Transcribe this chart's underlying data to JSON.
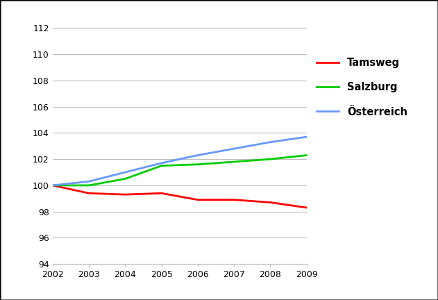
{
  "years": [
    2002,
    2003,
    2004,
    2005,
    2006,
    2007,
    2008,
    2009
  ],
  "tamsweg": [
    100.0,
    99.4,
    99.3,
    99.4,
    98.9,
    98.9,
    98.7,
    98.3
  ],
  "salzburg": [
    100.0,
    100.0,
    100.5,
    101.5,
    101.6,
    101.8,
    102.0,
    102.3
  ],
  "oesterreich": [
    100.0,
    100.3,
    101.0,
    101.7,
    102.3,
    102.8,
    103.3,
    103.7
  ],
  "tamsweg_color": "#ff0000",
  "salzburg_color": "#00cc00",
  "oesterreich_color": "#6699ff",
  "line_width": 2.0,
  "ylim": [
    94,
    113
  ],
  "yticks": [
    94,
    96,
    98,
    100,
    102,
    104,
    106,
    108,
    110,
    112
  ],
  "legend_labels": [
    "Tamsweg",
    "Salzburg",
    "Österreich"
  ],
  "background_color": "#ffffff",
  "grid_color": "#bbbbbb",
  "border_color": "#000000"
}
